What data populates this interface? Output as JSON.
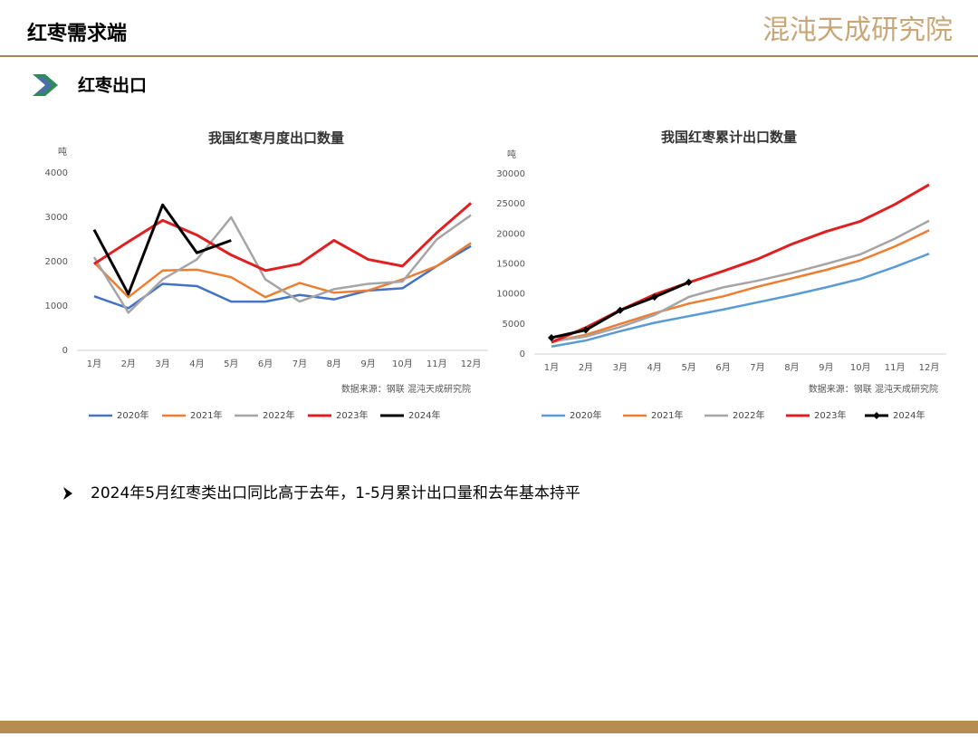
{
  "header": {
    "title": "红枣需求端",
    "logo": "混沌天成研究院"
  },
  "section": "红枣出口",
  "bullet": "2024年5月红枣类出口同比高于去年，1-5月累计出口量和去年基本持平",
  "chart_data": [
    {
      "type": "line",
      "title": "我国红枣月度出口数量",
      "y_label": "吨",
      "source": "数据来源：钢联  混沌天成研究院",
      "categories": [
        "1月",
        "2月",
        "3月",
        "4月",
        "5月",
        "6月",
        "7月",
        "8月",
        "9月",
        "10月",
        "11月",
        "12月"
      ],
      "ylim": [
        0,
        4000
      ],
      "yticks": [
        0,
        1000,
        2000,
        3000,
        4000
      ],
      "series": [
        {
          "name": "2020年",
          "color": "#4472c4",
          "values": [
            1220,
            950,
            1500,
            1450,
            1100,
            1100,
            1250,
            1150,
            1350,
            1400,
            1900,
            2350
          ]
        },
        {
          "name": "2021年",
          "color": "#ed7d31",
          "values": [
            1980,
            1200,
            1800,
            1820,
            1650,
            1200,
            1520,
            1300,
            1350,
            1600,
            1900,
            2420
          ]
        },
        {
          "name": "2022年",
          "color": "#a5a5a5",
          "values": [
            2100,
            850,
            1600,
            2050,
            3000,
            1600,
            1100,
            1380,
            1500,
            1550,
            2500,
            3050
          ]
        },
        {
          "name": "2023年",
          "color": "#e02020",
          "values": [
            1950,
            2450,
            2930,
            2600,
            2150,
            1800,
            1950,
            2480,
            2050,
            1900,
            2650,
            3320
          ]
        },
        {
          "name": "2024年",
          "color": "#000000",
          "values": [
            2720,
            1270,
            3280,
            2200,
            2480,
            null,
            null,
            null,
            null,
            null,
            null,
            null
          ]
        }
      ]
    },
    {
      "type": "line",
      "title": "我国红枣累计出口数量",
      "y_label": "吨",
      "source": "数据来源：钢联  混沌天成研究院",
      "categories": [
        "1月",
        "2月",
        "3月",
        "4月",
        "5月",
        "6月",
        "7月",
        "8月",
        "9月",
        "10月",
        "11月",
        "12月"
      ],
      "ylim": [
        0,
        30000
      ],
      "yticks": [
        0,
        5000,
        10000,
        15000,
        20000,
        25000,
        30000
      ],
      "series": [
        {
          "name": "2020年",
          "color": "#5b9bd5",
          "values": [
            1250,
            2250,
            3800,
            5200,
            6300,
            7400,
            8600,
            9800,
            11100,
            12500,
            14500,
            16700
          ]
        },
        {
          "name": "2021年",
          "color": "#ed7d31",
          "values": [
            2000,
            3200,
            5000,
            6800,
            8400,
            9600,
            11200,
            12600,
            14000,
            15600,
            17900,
            20600
          ]
        },
        {
          "name": "2022年",
          "color": "#a5a5a5",
          "values": [
            2100,
            2900,
            4500,
            6500,
            9500,
            11100,
            12200,
            13500,
            15000,
            16600,
            19200,
            22200
          ]
        },
        {
          "name": "2023年",
          "color": "#e02020",
          "values": [
            1950,
            4400,
            7300,
            9900,
            11900,
            13800,
            15800,
            18300,
            20400,
            22100,
            24900,
            28200
          ]
        },
        {
          "name": "2024年",
          "color": "#000000",
          "marker": "diamond",
          "values": [
            2720,
            3990,
            7270,
            9470,
            11950,
            null,
            null,
            null,
            null,
            null,
            null,
            null
          ]
        }
      ]
    }
  ]
}
